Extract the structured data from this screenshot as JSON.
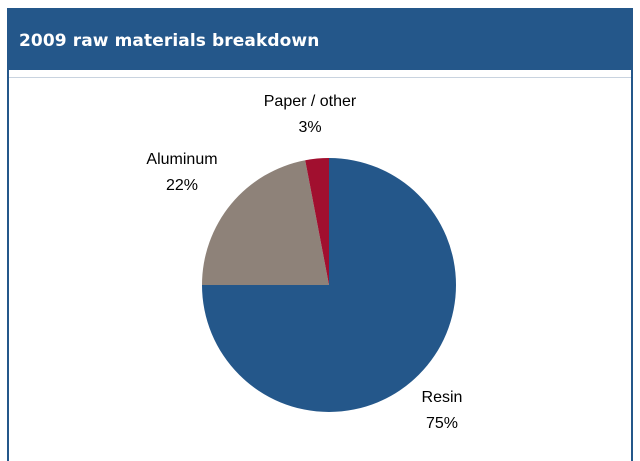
{
  "header": {
    "title": "2009 raw materials breakdown"
  },
  "chart_data": {
    "type": "pie",
    "slices": [
      {
        "label": "Resin",
        "value": 75,
        "value_label": "75%",
        "color": "#24578a"
      },
      {
        "label": "Aluminum",
        "value": 22,
        "value_label": "22%",
        "color": "#8e8279"
      },
      {
        "label": "Paper / other",
        "value": 3,
        "value_label": "3%",
        "color": "#a10f2f"
      }
    ],
    "start": "12 o'clock",
    "direction": "clockwise"
  }
}
